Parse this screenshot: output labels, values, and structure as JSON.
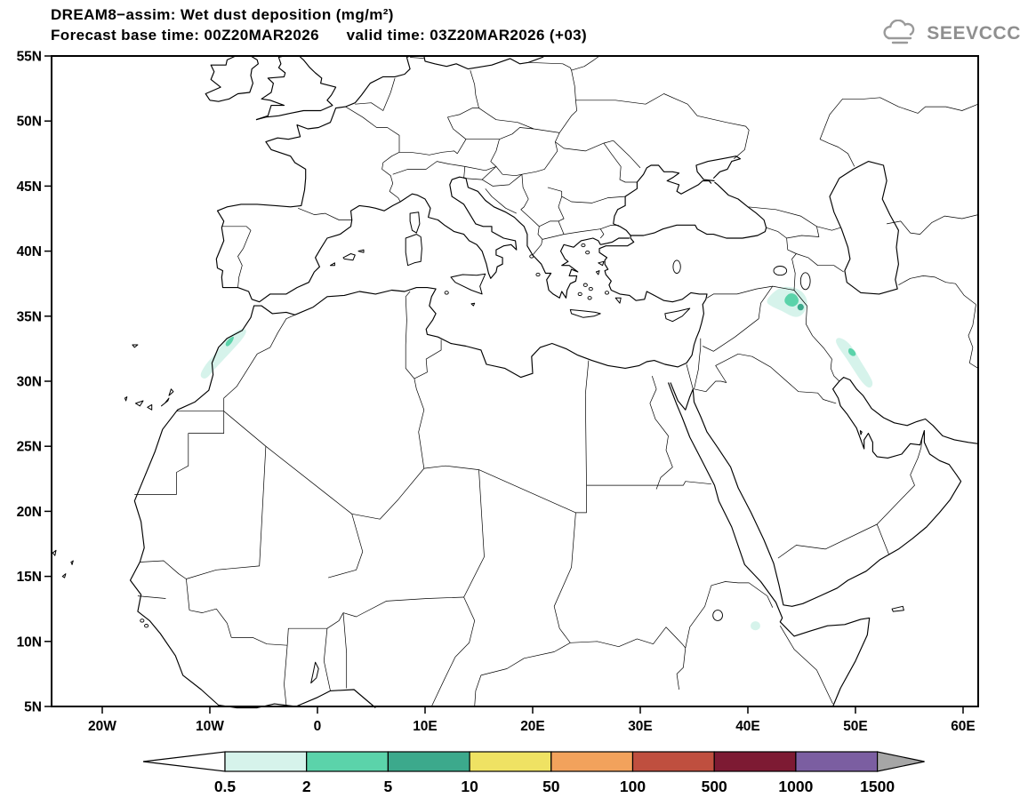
{
  "header": {
    "title": "DREAM8−assim: Wet dust deposition (mg/m²)",
    "subtitle": "Forecast base time: 00Z20MAR2026      valid time: 03Z20MAR2026 (+03)",
    "logo_text": "SEEVCCC"
  },
  "axes": {
    "lat": [
      {
        "v": 55,
        "label": "55N"
      },
      {
        "v": 50,
        "label": "50N"
      },
      {
        "v": 45,
        "label": "45N"
      },
      {
        "v": 40,
        "label": "40N"
      },
      {
        "v": 35,
        "label": "35N"
      },
      {
        "v": 30,
        "label": "30N"
      },
      {
        "v": 25,
        "label": "25N"
      },
      {
        "v": 20,
        "label": "20N"
      },
      {
        "v": 15,
        "label": "15N"
      },
      {
        "v": 10,
        "label": "10N"
      },
      {
        "v": 5,
        "label": "5N"
      }
    ],
    "lon": [
      {
        "v": -20,
        "label": "20W"
      },
      {
        "v": -10,
        "label": "10W"
      },
      {
        "v": 0,
        "label": "0"
      },
      {
        "v": 10,
        "label": "10E"
      },
      {
        "v": 20,
        "label": "20E"
      },
      {
        "v": 30,
        "label": "30E"
      },
      {
        "v": 40,
        "label": "40E"
      },
      {
        "v": 50,
        "label": "50E"
      },
      {
        "v": 60,
        "label": "60E"
      }
    ]
  },
  "chart_data": {
    "type": "heatmap",
    "title": "DREAM8−assim: Wet dust deposition (mg/m²)",
    "model": "DREAM8−assim",
    "variable": "Wet dust deposition",
    "units": "mg/m²",
    "forecast_base_time": "00Z20MAR2026",
    "valid_time": "03Z20MAR2026",
    "lead": "+03",
    "map_extent": {
      "lon_min": -24.7,
      "lon_max": 61.4,
      "lat_min": 5,
      "lat_max": 55
    },
    "colorbar": {
      "levels": [
        "0.5",
        "2",
        "5",
        "10",
        "50",
        "100",
        "500",
        "1000",
        "1500"
      ],
      "colors": [
        "#d6f3eb",
        "#5bd3aa",
        "#3ca98c",
        "#efe263",
        "#f2a25c",
        "#bf4f3f",
        "#7d1a33",
        "#7b5ea1"
      ],
      "under_color": "#ffffff",
      "over_color": "#a6a6a6"
    },
    "regions": [
      {
        "name": "morocco-atlas",
        "level": "0.5-2",
        "color_index": 0,
        "polygon": [
          [
            -11.0,
            30.4
          ],
          [
            -10.4,
            31.3
          ],
          [
            -9.6,
            32.0
          ],
          [
            -8.9,
            32.8
          ],
          [
            -8.0,
            33.6
          ],
          [
            -7.0,
            34.1
          ],
          [
            -6.5,
            33.9
          ],
          [
            -7.0,
            33.2
          ],
          [
            -7.9,
            32.4
          ],
          [
            -8.8,
            31.6
          ],
          [
            -9.7,
            30.8
          ],
          [
            -10.4,
            30.1
          ]
        ]
      },
      {
        "name": "morocco-atlas-core",
        "level": "2-5",
        "color_index": 1,
        "polygon": [
          [
            -8.6,
            32.9
          ],
          [
            -8.2,
            33.3
          ],
          [
            -7.7,
            33.5
          ],
          [
            -7.9,
            33.0
          ],
          [
            -8.4,
            32.6
          ]
        ]
      },
      {
        "name": "mesopotamia",
        "level": "0.5-2",
        "color_index": 0,
        "polygon": [
          [
            41.6,
            36.1
          ],
          [
            42.3,
            36.8
          ],
          [
            43.2,
            37.3
          ],
          [
            44.4,
            37.2
          ],
          [
            45.2,
            36.8
          ],
          [
            45.6,
            36.1
          ],
          [
            45.3,
            35.3
          ],
          [
            44.7,
            34.9
          ],
          [
            44.0,
            35.0
          ],
          [
            43.2,
            35.4
          ],
          [
            42.3,
            35.7
          ]
        ]
      },
      {
        "name": "mesopotamia-core",
        "level": "2-5",
        "color_index": 1,
        "polygon": [
          [
            43.3,
            36.2
          ],
          [
            43.8,
            36.8
          ],
          [
            44.5,
            36.7
          ],
          [
            44.8,
            36.1
          ],
          [
            44.3,
            35.7
          ],
          [
            43.7,
            35.8
          ]
        ]
      },
      {
        "name": "mesopotamia-max",
        "level": "5-10",
        "color_index": 2,
        "ellipse": [
          44.9,
          35.7,
          0.3,
          0.25
        ]
      },
      {
        "name": "zagros-west-iran",
        "level": "0.5-2",
        "color_index": 0,
        "polygon": [
          [
            48.4,
            33.4
          ],
          [
            49.2,
            33.1
          ],
          [
            49.9,
            32.4
          ],
          [
            50.5,
            31.5
          ],
          [
            51.2,
            30.6
          ],
          [
            51.7,
            29.8
          ],
          [
            51.3,
            29.4
          ],
          [
            50.6,
            29.9
          ],
          [
            49.9,
            30.8
          ],
          [
            49.2,
            31.7
          ],
          [
            48.5,
            32.5
          ],
          [
            48.1,
            33.1
          ]
        ]
      },
      {
        "name": "zagros-core",
        "level": "2-5",
        "color_index": 1,
        "polygon": [
          [
            49.4,
            32.6
          ],
          [
            49.9,
            32.4
          ],
          [
            50.1,
            32.0
          ],
          [
            49.7,
            31.9
          ],
          [
            49.3,
            32.2
          ]
        ]
      },
      {
        "name": "ethiopia-sudan-border",
        "level": "0.5-2",
        "color_index": 0,
        "ellipse": [
          40.7,
          11.2,
          0.45,
          0.35
        ]
      }
    ]
  }
}
